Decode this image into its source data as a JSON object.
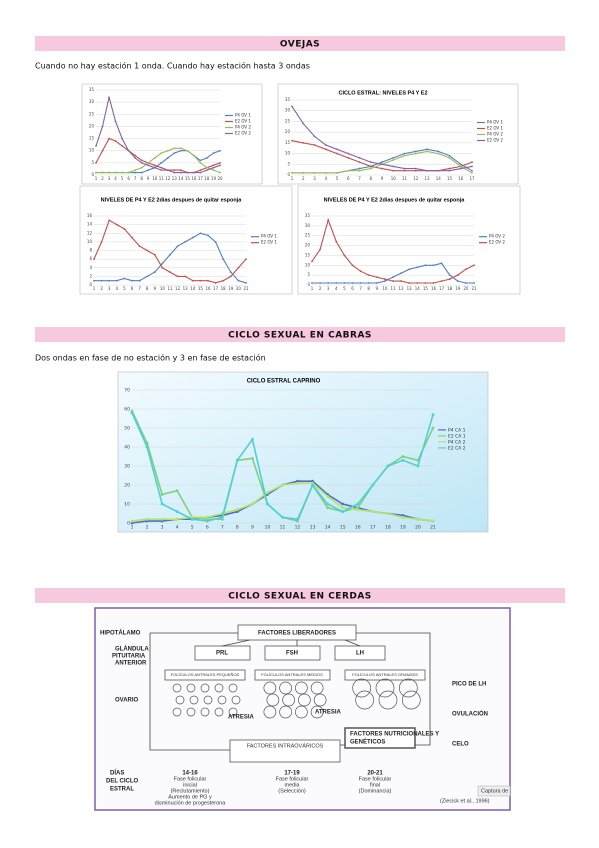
{
  "sections": [
    {
      "heading": "OVEJAS",
      "text": "Cuando no hay estación 1 onda. Cuando hay estación hasta 3 ondas"
    },
    {
      "heading": "CICLO SEXUAL EN CABRAS",
      "text": "Dos ondas en fase de no estación y 3 en fase de estación"
    },
    {
      "heading": "CICLO SEXUAL EN CERDAS"
    }
  ],
  "chart_data": [
    {
      "type": "line",
      "categories": [
        1,
        2,
        3,
        4,
        5,
        6,
        7,
        8,
        9,
        10,
        11,
        12,
        13,
        14,
        15,
        16,
        17,
        18,
        19,
        20
      ],
      "ylim": [
        0,
        35
      ],
      "yticks": [
        0,
        5,
        10,
        15,
        20,
        25,
        30,
        35
      ],
      "grid": true,
      "series": [
        {
          "name": "P4 OV 1",
          "color": "#4f81bd",
          "values": [
            1,
            1,
            1,
            1,
            1,
            1,
            1,
            1,
            2,
            3,
            5,
            7,
            9,
            10,
            10,
            8,
            6,
            7,
            9,
            10
          ]
        },
        {
          "name": "E2 OV 1",
          "color": "#c0504d",
          "values": [
            5,
            10,
            15,
            14,
            12,
            10,
            8,
            6,
            5,
            4,
            3,
            2,
            2,
            2,
            1,
            1,
            2,
            3,
            4,
            5
          ]
        },
        {
          "name": "P4 OV 2",
          "color": "#9bbb59",
          "values": [
            1,
            1,
            1,
            1,
            1,
            1,
            2,
            3,
            5,
            7,
            9,
            10,
            11,
            11,
            10,
            8,
            5,
            3,
            2,
            1
          ]
        },
        {
          "name": "E2 OV 2",
          "color": "#8064a2",
          "values": [
            12,
            20,
            32,
            22,
            15,
            10,
            7,
            5,
            4,
            3,
            2,
            2,
            1,
            1,
            1,
            1,
            1,
            2,
            3,
            4
          ]
        }
      ]
    },
    {
      "type": "line",
      "title": "CICLO ESTRAL: NIVELES P4 Y E2",
      "categories": [
        1,
        2,
        3,
        4,
        5,
        6,
        7,
        8,
        9,
        10,
        11,
        12,
        13,
        14,
        15,
        16,
        17
      ],
      "ylim": [
        0,
        35
      ],
      "yticks": [
        0,
        5,
        10,
        15,
        20,
        25,
        30,
        35
      ],
      "grid": true,
      "series": [
        {
          "name": "P4 OV 1",
          "color": "#4f81bd",
          "values": [
            1,
            1,
            1,
            1,
            1,
            2,
            3,
            4,
            6,
            8,
            10,
            11,
            12,
            11,
            9,
            5,
            2
          ]
        },
        {
          "name": "E2 OV 1",
          "color": "#c0504d",
          "values": [
            16,
            15,
            14,
            12,
            10,
            8,
            6,
            4,
            3,
            2,
            2,
            2,
            2,
            2,
            3,
            4,
            6
          ]
        },
        {
          "name": "P4 OV 2",
          "color": "#9bbb59",
          "values": [
            1,
            1,
            1,
            1,
            1,
            2,
            2,
            3,
            5,
            7,
            9,
            10,
            11,
            10,
            8,
            4,
            1
          ]
        },
        {
          "name": "E2 OV 2",
          "color": "#8064a2",
          "values": [
            32,
            24,
            18,
            14,
            12,
            10,
            8,
            6,
            5,
            4,
            3,
            3,
            2,
            2,
            2,
            3,
            4
          ]
        }
      ]
    },
    {
      "type": "line",
      "title": "NIVELES DE P4 Y E2 2dias despues de quitar esponja",
      "categories": [
        1,
        2,
        3,
        4,
        5,
        6,
        7,
        8,
        9,
        10,
        11,
        12,
        13,
        14,
        15,
        16,
        17,
        18,
        19,
        20,
        21
      ],
      "ylim": [
        0,
        16
      ],
      "yticks": [
        0,
        2,
        4,
        6,
        8,
        10,
        12,
        14,
        16
      ],
      "grid": true,
      "series": [
        {
          "name": "P4 OV 1",
          "color": "#4f81bd",
          "values": [
            1,
            1,
            1,
            1,
            1.5,
            1,
            1,
            2,
            3,
            5,
            7,
            9,
            10,
            11,
            12,
            11.5,
            10,
            6,
            3,
            1,
            0.5
          ]
        },
        {
          "name": "E2 OV 1",
          "color": "#c0504d",
          "values": [
            6,
            10,
            15,
            14,
            13,
            11,
            9,
            8,
            7,
            4,
            3,
            2,
            2,
            1,
            1,
            1,
            0.5,
            1,
            2,
            4,
            6
          ]
        }
      ]
    },
    {
      "type": "line",
      "title": "NIVELES DE P4 Y E2 2dias despues de quitar esponja",
      "categories": [
        1,
        2,
        3,
        4,
        5,
        6,
        7,
        8,
        9,
        10,
        11,
        12,
        13,
        14,
        15,
        16,
        17,
        18,
        19,
        20,
        21
      ],
      "ylim": [
        0,
        35
      ],
      "yticks": [
        0,
        5,
        10,
        15,
        20,
        25,
        30,
        35
      ],
      "grid": true,
      "series": [
        {
          "name": "P4 OV 2",
          "color": "#4f81bd",
          "values": [
            1,
            1,
            1,
            1,
            1,
            1,
            1,
            1,
            1,
            2,
            4,
            6,
            8,
            9,
            10,
            10,
            11,
            5,
            2,
            1,
            1
          ]
        },
        {
          "name": "E2 OV 2",
          "color": "#c0504d",
          "values": [
            12,
            18,
            33,
            22,
            15,
            10,
            7,
            5,
            4,
            3,
            2,
            2,
            1,
            1,
            1,
            1,
            2,
            3,
            5,
            8,
            10
          ]
        }
      ]
    },
    {
      "type": "line",
      "title": "CICLO ESTRAL CAPRINO",
      "categories": [
        1,
        2,
        3,
        4,
        5,
        6,
        7,
        8,
        9,
        10,
        11,
        12,
        13,
        14,
        15,
        16,
        17,
        18,
        19,
        20,
        21
      ],
      "ylim": [
        0,
        70
      ],
      "yticks": [
        0,
        10,
        20,
        30,
        40,
        50,
        60,
        70
      ],
      "grid": true,
      "series": [
        {
          "name": "P4 CA 1",
          "color": "#4f6fc4",
          "values": [
            0,
            1,
            1,
            2,
            2,
            3,
            4,
            6,
            10,
            15,
            20,
            22,
            22,
            15,
            10,
            8,
            6,
            5,
            4,
            2,
            1
          ]
        },
        {
          "name": "E2 CA 1",
          "color": "#7fd17f",
          "values": [
            59,
            42,
            15,
            17,
            3,
            2,
            2,
            33,
            34,
            10,
            3,
            1,
            20,
            8,
            6,
            8,
            20,
            30,
            35,
            33,
            50
          ]
        },
        {
          "name": "P4 CA 2",
          "color": "#b5e36a",
          "values": [
            1,
            2,
            2,
            2,
            3,
            3,
            5,
            7,
            10,
            16,
            20,
            21,
            21,
            14,
            8,
            7,
            6,
            5,
            3,
            2,
            1
          ]
        },
        {
          "name": "E2 CA 2",
          "color": "#4fcfd6",
          "values": [
            58,
            40,
            10,
            6,
            2,
            1,
            3,
            33,
            44,
            10,
            3,
            2,
            20,
            10,
            6,
            10,
            20,
            30,
            33,
            30,
            57
          ]
        }
      ]
    }
  ],
  "diagram": {
    "hypothalamus": "HIPOTÁLAMO",
    "releasing": "FACTORES LIBERADORES",
    "pituitary": [
      "GLÁNDULA",
      "PITUITARIA",
      "ANTERIOR"
    ],
    "hormones": [
      "PRL",
      "FSH",
      "LH"
    ],
    "ovary": "OVARIO",
    "follicles": [
      "FOLÍCULOS ANTRALES PEQUEÑOS",
      "FOLÍCULOS ANTRALES MEDIOS",
      "FOLÍCULOS ANTRALES GRANDES"
    ],
    "atresia": "ATRESIA",
    "intraovarian": "FACTORES INTRAOVÁRICOS",
    "nutritional": [
      "FACTORES NUTRICIONALES Y",
      "GENÉTICOS"
    ],
    "events": [
      "PICO DE LH",
      "OVULACIÓN",
      "CELO"
    ],
    "days": [
      "DÍAS",
      "DEL CICLO",
      "ESTRAL"
    ],
    "phases": [
      [
        "14-16",
        "Fase folicular",
        "inicial",
        "(Reclutamiento)",
        "Aumento de PG y",
        "disminución de progesterona"
      ],
      [
        "17-19",
        "Fase folicular",
        "media",
        "(Selección)"
      ],
      [
        "20-21",
        "Fase folicular",
        "final",
        "(Dominancia)"
      ]
    ],
    "source": "(Ziecick et al., 1996)",
    "capture": "Captura de"
  }
}
